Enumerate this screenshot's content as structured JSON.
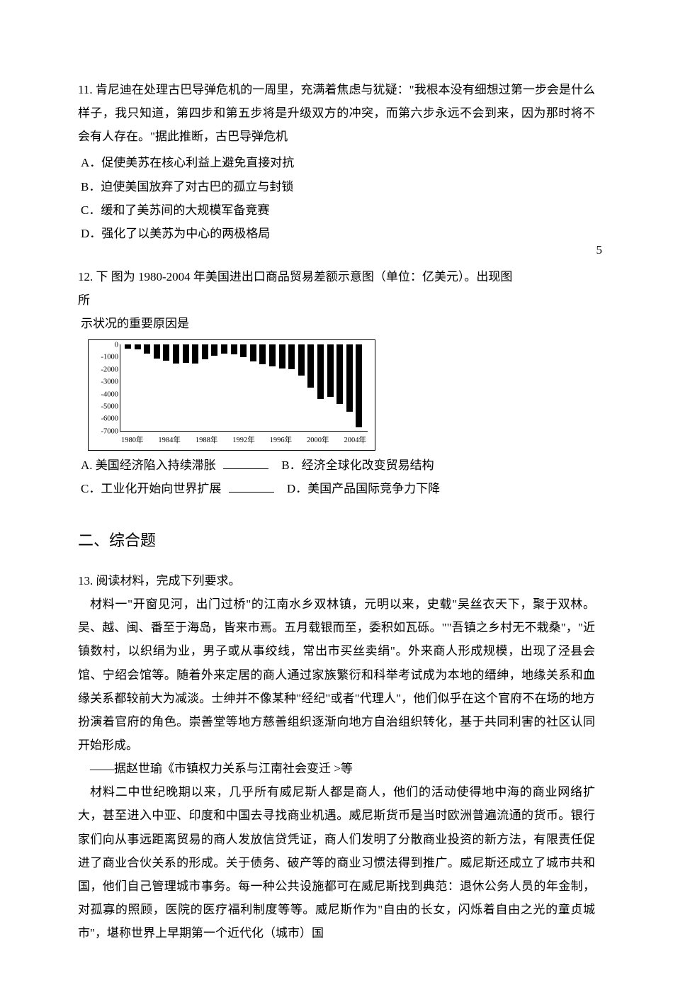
{
  "page_number_corner": "5",
  "q11": {
    "number": "11.",
    "gap": "      ",
    "stem": "肯尼迪在处理古巴导弹危机的一周里，充满着焦虑与犹疑：\"我根本没有细想过第一步会是什么样子，我只知道，第四步和第五步将是升级双方的冲突，而第六步永远不会到来，因为那时将不会有人存在。\"据此推断，古巴导弹危机",
    "opts": {
      "A": "A．促使美苏在核心利益上避免直接对抗",
      "B": "B．迫使美国放弃了对古巴的孤立与封锁",
      "C": "C．缓和了美苏间的大规模军备竞赛",
      "D": "D．强化了以美苏为中心的两极格局"
    }
  },
  "q12": {
    "number": "12.",
    "gap": "      ",
    "stem_pre": "下 图为 1980-2004 年美国进出口商品贸易差额示意图（单位：亿美元）。出现图",
    "stem_line2": "所",
    "stem_post": "示状况的重要原因是",
    "chart": {
      "type": "bar",
      "y_ticks": [
        "0",
        "-1000",
        "-2000",
        "-3000",
        "-4000",
        "-5000",
        "-6000",
        "-7000"
      ],
      "y_min": -7000,
      "y_max": 0,
      "x_labels": [
        "1980年",
        "1984年",
        "1988年",
        "1992年",
        "1996年",
        "2000年",
        "2004年"
      ],
      "bars": [
        -300,
        -350,
        -700,
        -1150,
        -1300,
        -1500,
        -1450,
        -1550,
        -1200,
        -900,
        -700,
        -800,
        -1000,
        -1350,
        -1600,
        -1750,
        -1900,
        -2000,
        -2500,
        -3500,
        -4400,
        -4200,
        -4800,
        -5400,
        -6700
      ],
      "bar_color": "#000000",
      "border_color": "#000000"
    },
    "opts": {
      "A_pre": "A.      美国经济陷入持续滞胀   ",
      "B": "B．经济全球化改变贸易结构",
      "C_pre": "C．工业化开始向世界扩展   ",
      "D": "D．美国产品国际竞争力下降"
    }
  },
  "section2_title": "二、综合题",
  "q13": {
    "number": "13.",
    "gap": "      ",
    "stem": "阅读材料，完成下列要求。",
    "mat1": "材料一\"开窗见河，出门过桥\"的江南水乡双林镇，元明以来，史载\"吴丝衣天下，聚于双林。吴、越、闽、番至于海岛，皆来市焉。五月载银而至，委积如瓦砾。\"\"吾镇之乡村无不栽桑\"，\"近镇数村，以织绢为业，男子或从事绞线，常出市买丝卖绢\"。外来商人形成规模，出现了泾县会馆、宁绍会馆等。随着外来定居的商人通过家族繁衍和科举考试成为本地的缙绅，地缘关系和血缘关系都较前大为减淡。士绅并不像某种\"经纪\"或者\"代理人\"，他们似乎在这个官府不在场的地方扮演着官府的角色。崇善堂等地方慈善组织逐渐向地方自治组织转化，基于共同利害的社区认同开始形成。",
    "src1_pre": "——据赵世瑜《市镇权力关系与江南社会变迁      ",
    "src1_post": ">等",
    "mat2": "材料二中世纪晚期以来，几乎所有威尼斯人都是商人，他们的活动使得地中海的商业网络扩大，甚至进入中亚、印度和中国去寻找商业机遇。威尼斯货币是当时欧洲普遍流通的货币。银行家们向从事远距离贸易的商人发放信贷凭证，商人们发明了分散商业投资的新方法，有限责任促进了商业合伙关系的形成。关于债务、破产等的商业习惯法得到推广。威尼斯还成立了城市共和国，他们自己管理城市事务。每一种公共设施都可在威尼斯找到典范：退休公务人员的年金制，对孤寡的照顾，医院的医疗福利制度等等。威尼斯作为\"自由的长女，闪烁着自由之光的童贞城市\"，堪称世界上早期第一个近代化（城市）国"
  }
}
